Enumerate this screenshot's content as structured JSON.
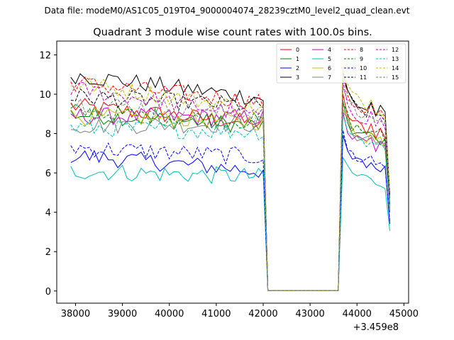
{
  "page": {
    "suptitle": "Data file: modeM0/AS1C05_019T04_9000004074_28239cztM0_level2_quad_clean.evt"
  },
  "chart_data": {
    "type": "line",
    "title": "Quadrant 3 module wise count rates with 100.0s bins.",
    "xlabel": "",
    "ylabel": "",
    "x_offset_label": "+3.459e8",
    "xlim": [
      37600,
      45100
    ],
    "ylim": [
      -0.62,
      12.7
    ],
    "xticks": [
      38000,
      39000,
      40000,
      41000,
      42000,
      43000,
      44000,
      45000
    ],
    "xtick_labels": [
      "38000",
      "39000",
      "40000",
      "41000",
      "42000",
      "43000",
      "44000",
      "45000"
    ],
    "yticks": [
      0,
      2,
      4,
      6,
      8,
      10,
      12
    ],
    "ytick_labels": [
      "0",
      "2",
      "4",
      "6",
      "8",
      "10",
      "12"
    ],
    "x_start": 37900,
    "x_step": 100,
    "gap_start": 42100,
    "gap_end": 43600,
    "x_end": 44700,
    "legend_location": "upper right",
    "legend_ncol": 4,
    "series": [
      {
        "name": "0",
        "color": "#ff0000",
        "style": "solid",
        "level": 9.4,
        "end": 8.5,
        "post": 9.8
      },
      {
        "name": "1",
        "color": "#008000",
        "style": "solid",
        "level": 9.0,
        "end": 8.4,
        "post": 9.3
      },
      {
        "name": "2",
        "color": "#0000ff",
        "style": "solid",
        "level": 6.9,
        "end": 6.1,
        "post": 7.6
      },
      {
        "name": "3",
        "color": "#000000",
        "style": "solid",
        "level": 11.0,
        "end": 9.8,
        "post": 11.0
      },
      {
        "name": "4",
        "color": "#bf00bf",
        "style": "solid",
        "level": 8.9,
        "end": 8.8,
        "post": 8.9
      },
      {
        "name": "5",
        "color": "#00bfbf",
        "style": "solid",
        "level": 6.1,
        "end": 5.8,
        "post": 6.8
      },
      {
        "name": "6",
        "color": "#bfbf00",
        "style": "solid",
        "level": 8.9,
        "end": 8.6,
        "post": 9.3
      },
      {
        "name": "7",
        "color": "#808080",
        "style": "solid",
        "level": 8.4,
        "end": 8.5,
        "post": 9.2
      },
      {
        "name": "8",
        "color": "#ff0000",
        "style": "dashed",
        "level": 10.6,
        "end": 9.6,
        "post": 10.9
      },
      {
        "name": "9",
        "color": "#008000",
        "style": "dashed",
        "level": 9.1,
        "end": 8.6,
        "post": 9.6
      },
      {
        "name": "10",
        "color": "#0000ff",
        "style": "dashed",
        "level": 7.3,
        "end": 6.8,
        "post": 7.9
      },
      {
        "name": "11",
        "color": "#000000",
        "style": "dashed",
        "level": 9.9,
        "end": 9.4,
        "post": 10.8
      },
      {
        "name": "12",
        "color": "#bf00bf",
        "style": "dashed",
        "level": 10.3,
        "end": 8.9,
        "post": 10.4
      },
      {
        "name": "13",
        "color": "#00bfbf",
        "style": "dashed",
        "level": 8.3,
        "end": 8.1,
        "post": 9.0
      },
      {
        "name": "14",
        "color": "#bfbf00",
        "style": "dashed",
        "level": 10.6,
        "end": 9.2,
        "post": 11.3
      },
      {
        "name": "15",
        "color": "#808080",
        "style": "dashed",
        "level": 9.6,
        "end": 8.9,
        "post": 10.5
      }
    ]
  }
}
